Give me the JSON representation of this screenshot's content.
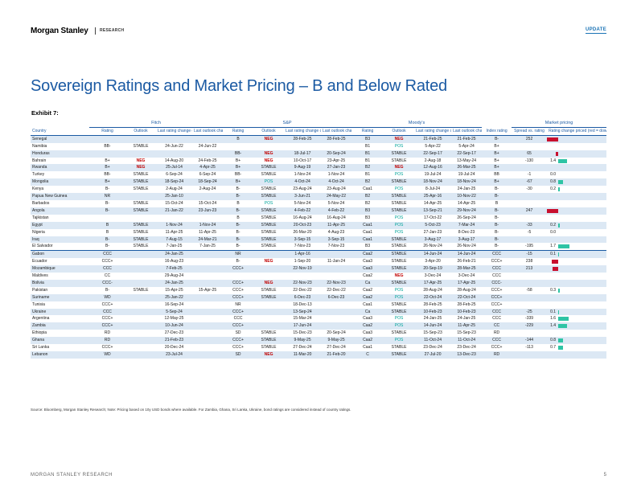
{
  "header": {
    "logo": "Morgan Stanley",
    "section": "RESEARCH",
    "tag": "UPDATE"
  },
  "title": "Sovereign Ratings and Market Pricing – B and Below Rated",
  "exhibit": "Exhibit 7:",
  "groups": {
    "fitch": "Fitch",
    "sp": "S&P",
    "moodys": "Moody's",
    "market": "Market pricing"
  },
  "columns": {
    "country": "Country",
    "rating": "Rating",
    "outlook": "Outlook",
    "last_rating": "Last rating change dt.",
    "last_outlook": "Last outlook change dt.",
    "index_rating": "Index rating",
    "spread": "Spread vs. rating",
    "change": "Rating change priced (red = downgrades, green = upgrades)"
  },
  "rows": [
    {
      "country": "Senegal",
      "f": [
        "",
        "",
        "",
        ""
      ],
      "s": [
        "B",
        "NEG",
        "28-Feb-25",
        "28-Feb-25"
      ],
      "m": [
        "B3",
        "NEG",
        "21-Feb-25",
        "21-Feb-25"
      ],
      "idx": "B-",
      "spread": "252",
      "chg": "",
      "bar": -1.9
    },
    {
      "country": "Namibia",
      "f": [
        "BB-",
        "STABLE",
        "24-Jun-22",
        "24-Jun-22"
      ],
      "s": [
        "",
        "",
        "",
        ""
      ],
      "m": [
        "B1",
        "POS",
        "5-Apr-22",
        "5-Apr-24"
      ],
      "idx": "B+",
      "spread": "",
      "chg": "",
      "bar": 0
    },
    {
      "country": "Honduras",
      "f": [
        "",
        "",
        "",
        ""
      ],
      "s": [
        "BB-",
        "NEG",
        "18-Jul-17",
        "20-Sep-24"
      ],
      "m": [
        "B1",
        "STABLE",
        "22-Sep-17",
        "22-Sep-17"
      ],
      "idx": "B+",
      "spread": "65",
      "chg": "",
      "bar": -0.4
    },
    {
      "country": "Bahrain",
      "f": [
        "B+",
        "NEG",
        "14-Aug-20",
        "24-Feb-25"
      ],
      "s": [
        "B+",
        "NEG",
        "10-Oct-17",
        "23-Apr-25"
      ],
      "m": [
        "B1",
        "STABLE",
        "2-Aug-18",
        "13-May-24"
      ],
      "idx": "B+",
      "spread": "-130",
      "chg": "1.4",
      "bar": 1.4
    },
    {
      "country": "Rwanda",
      "f": [
        "B+",
        "NEG",
        "25-Jul-14",
        "4-Apr-25"
      ],
      "s": [
        "B+",
        "STABLE",
        "9-Aug-19",
        "27-Jan-23"
      ],
      "m": [
        "B2",
        "NEG",
        "12-Aug-16",
        "26-Mar-25"
      ],
      "idx": "B+",
      "spread": "",
      "chg": "",
      "bar": 0
    },
    {
      "country": "Turkey",
      "f": [
        "BB-",
        "STABLE",
        "6-Sep-24",
        "6-Sep-24"
      ],
      "s": [
        "BB-",
        "STABLE",
        "1-Nov-24",
        "1-Nov-24"
      ],
      "m": [
        "B1",
        "POS",
        "19-Jul-24",
        "19-Jul-24"
      ],
      "idx": "BB",
      "spread": "-1",
      "chg": "0.0",
      "bar": 0
    },
    {
      "country": "Mongolia",
      "f": [
        "B+",
        "STABLE",
        "18-Sep-24",
        "18-Sep-24"
      ],
      "s": [
        "B+",
        "POS",
        "4-Oct-24",
        "4-Oct-24"
      ],
      "m": [
        "B2",
        "STABLE",
        "18-Nov-24",
        "18-Nov-24"
      ],
      "idx": "B+",
      "spread": "-67",
      "chg": "0.8",
      "bar": 0.8
    },
    {
      "country": "Kenya",
      "f": [
        "B-",
        "STABLE",
        "2-Aug-24",
        "2-Aug-24"
      ],
      "s": [
        "B-",
        "STABLE",
        "23-Aug-24",
        "23-Aug-24"
      ],
      "m": [
        "Caa1",
        "POS",
        "8-Jul-24",
        "24-Jan-25"
      ],
      "idx": "B-",
      "spread": "-30",
      "chg": "0.2",
      "bar": 0.2
    },
    {
      "country": "Papua New Guinea",
      "f": [
        "NR",
        "",
        "25-Jan-10",
        ""
      ],
      "s": [
        "B-",
        "STABLE",
        "3-Jun-21",
        "24-May-22"
      ],
      "m": [
        "B2",
        "STABLE",
        "25-Apr-16",
        "10-Nov-22"
      ],
      "idx": "B-",
      "spread": "",
      "chg": "",
      "bar": 0
    },
    {
      "country": "Barbados",
      "f": [
        "B-",
        "STABLE",
        "15-Oct-24",
        "15-Oct-24"
      ],
      "s": [
        "B",
        "POS",
        "5-Nov-24",
        "5-Nov-24"
      ],
      "m": [
        "B2",
        "STABLE",
        "14-Apr-25",
        "14-Apr-25"
      ],
      "idx": "B",
      "spread": "",
      "chg": "",
      "bar": 0
    },
    {
      "country": "Angola",
      "f": [
        "B-",
        "STABLE",
        "21-Jan-22",
        "23-Jun-23"
      ],
      "s": [
        "B-",
        "STABLE",
        "4-Feb-22",
        "4-Feb-22"
      ],
      "m": [
        "B3",
        "STABLE",
        "13-Sep-21",
        "29-Nov-24"
      ],
      "idx": "B-",
      "spread": "247",
      "chg": "",
      "bar": -1.9
    },
    {
      "country": "Tajikistan",
      "f": [
        "",
        "",
        "",
        ""
      ],
      "s": [
        "B",
        "STABLE",
        "16-Aug-24",
        "16-Aug-24"
      ],
      "m": [
        "B3",
        "POS",
        "17-Oct-22",
        "26-Sep-24"
      ],
      "idx": "B-",
      "spread": "",
      "chg": "",
      "bar": 0
    },
    {
      "country": "Egypt",
      "f": [
        "B",
        "STABLE",
        "1-Nov-24",
        "1-Nov-24"
      ],
      "s": [
        "B-",
        "STABLE",
        "20-Oct-23",
        "11-Apr-25"
      ],
      "m": [
        "Caa1",
        "POS",
        "5-Oct-23",
        "7-Mar-24"
      ],
      "idx": "B-",
      "spread": "-33",
      "chg": "0.2",
      "bar": 0.2
    },
    {
      "country": "Nigeria",
      "f": [
        "B",
        "STABLE",
        "11-Apr-25",
        "11-Apr-25"
      ],
      "s": [
        "B-",
        "STABLE",
        "26-Mar-20",
        "4-Aug-23"
      ],
      "m": [
        "Caa1",
        "POS",
        "27-Jan-23",
        "8-Dec-23"
      ],
      "idx": "B-",
      "spread": "-5",
      "chg": "0.0",
      "bar": 0
    },
    {
      "country": "Iraq",
      "f": [
        "B-",
        "STABLE",
        "7-Aug-15",
        "24-Mar-21"
      ],
      "s": [
        "B-",
        "STABLE",
        "3-Sep-15",
        "3-Sep-15"
      ],
      "m": [
        "Caa1",
        "STABLE",
        "3-Aug-17",
        "3-Aug-17"
      ],
      "idx": "B-",
      "spread": "",
      "chg": "",
      "bar": 0
    },
    {
      "country": "El Salvador",
      "f": [
        "B-",
        "STABLE",
        "7-Jan-25",
        "7-Jan-25"
      ],
      "s": [
        "B-",
        "STABLE",
        "7-Nov-23",
        "7-Nov-23"
      ],
      "m": [
        "B3",
        "STABLE",
        "26-Nov-24",
        "26-Nov-24"
      ],
      "idx": "B-",
      "spread": "-195",
      "chg": "1.7",
      "bar": 1.7
    },
    {
      "country": "Gabon",
      "f": [
        "CCC",
        "",
        "24-Jan-25",
        ""
      ],
      "s": [
        "NR",
        "",
        "1-Apr-16",
        ""
      ],
      "m": [
        "Caa2",
        "STABLE",
        "14-Jun-24",
        "14-Jun-24"
      ],
      "idx": "CCC",
      "spread": "-15",
      "chg": "0.1",
      "bar": 0.1
    },
    {
      "country": "Ecuador",
      "f": [
        "CCC+",
        "",
        "16-Aug-23",
        ""
      ],
      "s": [
        "B-",
        "NEG",
        "1-Sep-20",
        "11-Jan-24"
      ],
      "m": [
        "Caa3",
        "STABLE",
        "3-Apr-20",
        "26-Feb-21"
      ],
      "idx": "CCC+",
      "spread": "238",
      "chg": "",
      "bar": -1.0
    },
    {
      "country": "Mozambique",
      "f": [
        "CCC",
        "",
        "7-Feb-25",
        ""
      ],
      "s": [
        "CCC+",
        "",
        "22-Nov-19",
        ""
      ],
      "m": [
        "Caa3",
        "STABLE",
        "20-Sep-19",
        "28-Mar-25"
      ],
      "idx": "CCC",
      "spread": "213",
      "chg": "",
      "bar": -0.9
    },
    {
      "country": "Maldives",
      "f": [
        "CC",
        "",
        "29-Aug-24",
        ""
      ],
      "s": [
        "",
        "",
        "",
        ""
      ],
      "m": [
        "Caa2",
        "NEG",
        "3-Dec-24",
        "3-Dec-24"
      ],
      "idx": "CCC",
      "spread": "",
      "chg": "",
      "bar": 0
    },
    {
      "country": "Bolivia",
      "f": [
        "CCC-",
        "",
        "24-Jan-25",
        ""
      ],
      "s": [
        "CCC+",
        "NEG",
        "22-Nov-23",
        "22-Nov-23"
      ],
      "m": [
        "Ca",
        "STABLE",
        "17-Apr-25",
        "17-Apr-25"
      ],
      "idx": "CCC-",
      "spread": "",
      "chg": "",
      "bar": 0
    },
    {
      "country": "Pakistan",
      "f": [
        "B-",
        "STABLE",
        "15-Apr-25",
        "15-Apr-25"
      ],
      "s": [
        "CCC+",
        "STABLE",
        "22-Dec-22",
        "22-Dec-22"
      ],
      "m": [
        "Caa2",
        "POS",
        "28-Aug-24",
        "28-Aug-24"
      ],
      "idx": "CCC+",
      "spread": "-58",
      "chg": "0.3",
      "bar": 0.3
    },
    {
      "country": "Suriname",
      "f": [
        "WD",
        "",
        "25-Jan-22",
        ""
      ],
      "s": [
        "CCC+",
        "STABLE",
        "6-Dec-23",
        "6-Dec-23"
      ],
      "m": [
        "Caa2",
        "POS",
        "22-Oct-24",
        "22-Oct-24"
      ],
      "idx": "CCC+",
      "spread": "",
      "chg": "",
      "bar": 0
    },
    {
      "country": "Tunisia",
      "f": [
        "CCC+",
        "",
        "16-Sep-24",
        ""
      ],
      "s": [
        "NR",
        "",
        "18-Dec-13",
        ""
      ],
      "m": [
        "Caa1",
        "STABLE",
        "28-Feb-25",
        "28-Feb-25"
      ],
      "idx": "CCC+",
      "spread": "",
      "chg": "",
      "bar": 0
    },
    {
      "country": "Ukraine",
      "f": [
        "CCC",
        "",
        "5-Sep-24",
        ""
      ],
      "s": [
        "CCC+",
        "",
        "13-Sep-24",
        ""
      ],
      "m": [
        "Ca",
        "STABLE",
        "10-Feb-23",
        "10-Feb-23"
      ],
      "idx": "CCC",
      "spread": "-25",
      "chg": "0.1",
      "bar": 0.1
    },
    {
      "country": "Argentina",
      "f": [
        "CCC+",
        "",
        "12-May-25",
        ""
      ],
      "s": [
        "CCC",
        "",
        "15-Mar-24",
        ""
      ],
      "m": [
        "Caa3",
        "POS",
        "24-Jan-25",
        "24-Jan-25"
      ],
      "idx": "CCC",
      "spread": "-339",
      "chg": "1.6",
      "bar": 1.6
    },
    {
      "country": "Zambia",
      "f": [
        "CCC+",
        "",
        "10-Jun-24",
        ""
      ],
      "s": [
        "CCC+",
        "",
        "17-Jun-24",
        ""
      ],
      "m": [
        "Caa2",
        "POS",
        "14-Jun-24",
        "11-Apr-25"
      ],
      "idx": "CC",
      "spread": "-229",
      "chg": "1.4",
      "bar": 1.4
    },
    {
      "country": "Ethiopia",
      "f": [
        "RD",
        "",
        "27-Dec-23",
        ""
      ],
      "s": [
        "SD",
        "STABLE",
        "15-Dec-23",
        "20-Sep-24"
      ],
      "m": [
        "Caa3",
        "STABLE",
        "15-Sep-23",
        "15-Sep-23"
      ],
      "idx": "RD",
      "spread": "",
      "chg": "",
      "bar": 0
    },
    {
      "country": "Ghana",
      "f": [
        "RD",
        "",
        "21-Feb-23",
        ""
      ],
      "s": [
        "CCC+",
        "STABLE",
        "9-May-25",
        "9-May-25"
      ],
      "m": [
        "Caa2",
        "POS",
        "11-Oct-24",
        "11-Oct-24"
      ],
      "idx": "CCC",
      "spread": "-144",
      "chg": "0.8",
      "bar": 0.8
    },
    {
      "country": "Sri Lanka",
      "f": [
        "CCC+",
        "",
        "20-Dec-24",
        ""
      ],
      "s": [
        "CCC+",
        "STABLE",
        "27-Dec-24",
        "27-Dec-24"
      ],
      "m": [
        "Caa1",
        "STABLE",
        "23-Dec-24",
        "23-Dec-24"
      ],
      "idx": "CCC+",
      "spread": "-113",
      "chg": "0.7",
      "bar": 0.7
    },
    {
      "country": "Lebanon",
      "f": [
        "WD",
        "",
        "23-Jul-24",
        ""
      ],
      "s": [
        "SD",
        "NEG",
        "11-Mar-20",
        "21-Feb-20"
      ],
      "m": [
        "C",
        "STABLE",
        "27-Jul-20",
        "13-Dec-23"
      ],
      "idx": "RD",
      "spread": "",
      "chg": "",
      "bar": 0
    }
  ],
  "source": "Source: Bloomberg, Morgan Stanley Research; Note: Pricing based on 10y USD bonds where available. For Zambia, Ghana, Sri Lanka, Ukraine, bond ratings are considered instead of country ratings.",
  "footer": {
    "left": "MORGAN STANLEY RESEARCH",
    "page": "5"
  },
  "colors": {
    "accent": "#1b5aa3",
    "neg": "#c00000",
    "pos": "#00a49a",
    "band": "#dce8f4",
    "bar_neg": "#c8102e",
    "bar_pos": "#2ec4a5"
  }
}
